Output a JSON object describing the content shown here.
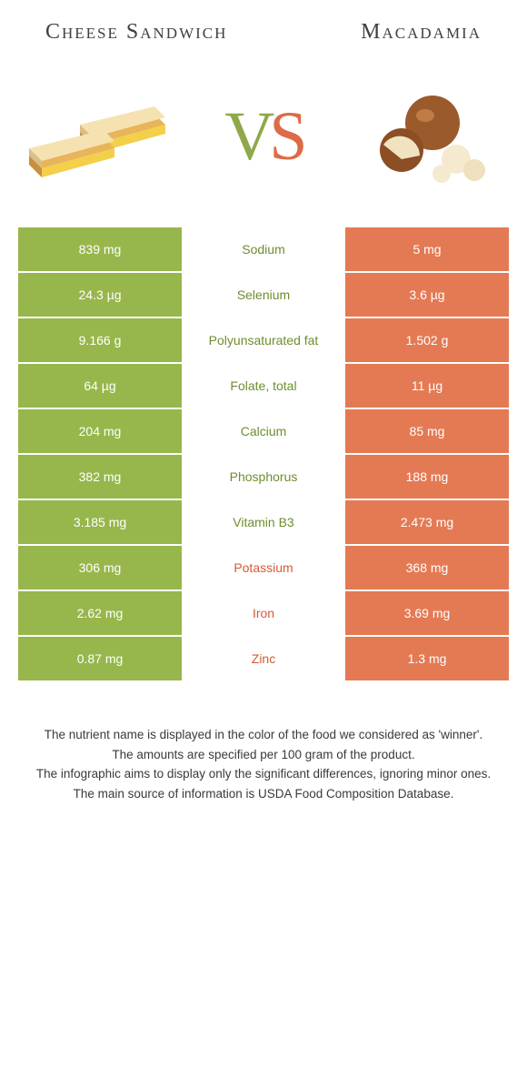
{
  "left_title": "Cheese Sandwich",
  "right_title": "Macadamia",
  "vs": {
    "v": "V",
    "s": "S"
  },
  "colors": {
    "left_cell": "#97b74c",
    "right_cell": "#e47a54",
    "mid_green": "#6e8e2e",
    "mid_orange": "#d35b37",
    "background": "#ffffff"
  },
  "rows": [
    {
      "left": "839 mg",
      "label": "Sodium",
      "right": "5 mg",
      "winner": "green"
    },
    {
      "left": "24.3 µg",
      "label": "Selenium",
      "right": "3.6 µg",
      "winner": "green"
    },
    {
      "left": "9.166 g",
      "label": "Polyunsaturated fat",
      "right": "1.502 g",
      "winner": "green"
    },
    {
      "left": "64 µg",
      "label": "Folate, total",
      "right": "11 µg",
      "winner": "green"
    },
    {
      "left": "204 mg",
      "label": "Calcium",
      "right": "85 mg",
      "winner": "green"
    },
    {
      "left": "382 mg",
      "label": "Phosphorus",
      "right": "188 mg",
      "winner": "green"
    },
    {
      "left": "3.185 mg",
      "label": "Vitamin B3",
      "right": "2.473 mg",
      "winner": "green"
    },
    {
      "left": "306 mg",
      "label": "Potassium",
      "right": "368 mg",
      "winner": "orange"
    },
    {
      "left": "2.62 mg",
      "label": "Iron",
      "right": "3.69 mg",
      "winner": "orange"
    },
    {
      "left": "0.87 mg",
      "label": "Zinc",
      "right": "1.3 mg",
      "winner": "orange"
    }
  ],
  "notes": [
    "The nutrient name is displayed in the color of the food we considered as 'winner'.",
    "The amounts are specified per 100 gram of the product.",
    "The infographic aims to display only the significant differences, ignoring minor ones.",
    "The main source of information is USDA Food Composition Database."
  ]
}
